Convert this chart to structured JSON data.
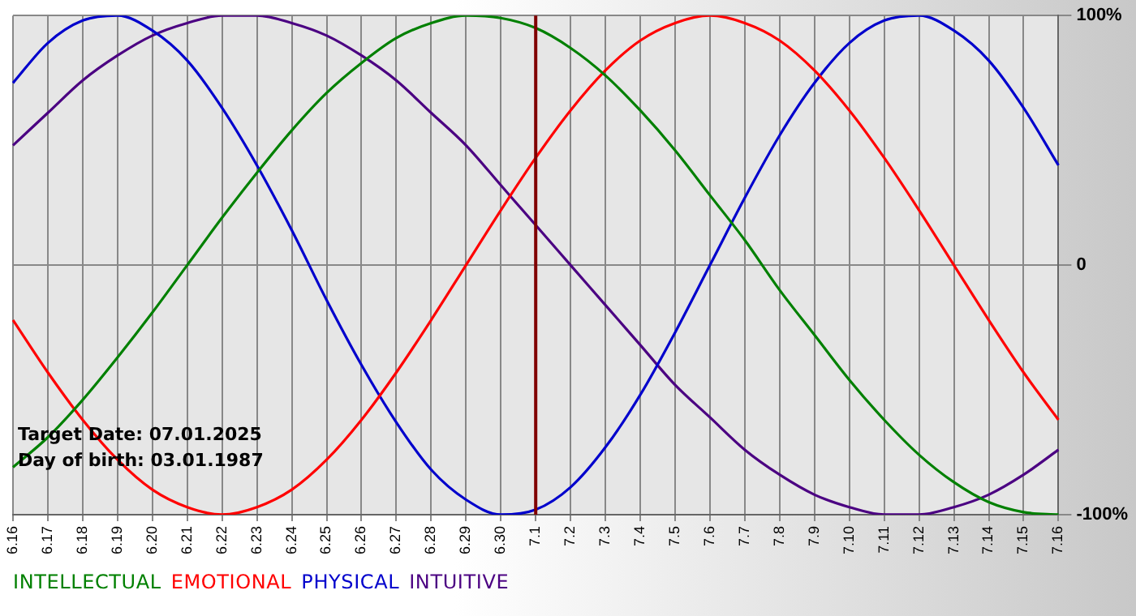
{
  "chart_data": {
    "type": "line",
    "categories": [
      "6.16",
      "6.17",
      "6.18",
      "6.19",
      "6.20",
      "6.21",
      "6.22",
      "6.23",
      "6.24",
      "6.25",
      "6.26",
      "6.27",
      "6.28",
      "6.29",
      "6.30",
      "7.1",
      "7.2",
      "7.3",
      "7.4",
      "7.5",
      "7.6",
      "7.7",
      "7.8",
      "7.9",
      "7.10",
      "7.11",
      "7.12",
      "7.13",
      "7.14",
      "7.15",
      "7.16"
    ],
    "series": [
      {
        "name": "INTELLECTUAL",
        "color": "#008000",
        "values": [
          -81,
          -69,
          -54,
          -37,
          -19,
          0,
          19,
          37,
          54,
          69,
          81,
          91,
          97,
          100,
          99,
          95,
          87,
          76,
          62,
          46,
          28,
          10,
          -10,
          -28,
          -46,
          -62,
          -76,
          -87,
          -95,
          -99,
          -100
        ]
      },
      {
        "name": "EMOTIONAL",
        "color": "#ff0000",
        "values": [
          -22,
          -43,
          -62,
          -78,
          -90,
          -97,
          -100,
          -97,
          -90,
          -78,
          -62,
          -43,
          -22,
          0,
          22,
          43,
          62,
          78,
          90,
          97,
          100,
          97,
          90,
          78,
          62,
          43,
          22,
          0,
          -22,
          -43,
          -62
        ]
      },
      {
        "name": "PHYSICAL",
        "color": "#0000cc",
        "values": [
          73,
          89,
          98,
          100,
          94,
          82,
          63,
          40,
          14,
          -14,
          -40,
          -63,
          -82,
          -94,
          -100,
          -98,
          -89,
          -73,
          -52,
          -27,
          0,
          27,
          52,
          73,
          89,
          98,
          100,
          94,
          82,
          63,
          40
        ]
      },
      {
        "name": "INTUITIVE",
        "color": "#4b0082",
        "values": [
          48,
          61,
          74,
          84,
          92,
          97,
          100,
          100,
          97,
          92,
          84,
          74,
          61,
          48,
          32,
          16,
          0,
          -16,
          -32,
          -48,
          -61,
          -74,
          -84,
          -92,
          -97,
          -100,
          -100,
          -97,
          -92,
          -84,
          -74
        ]
      }
    ],
    "ylim": [
      -100,
      100
    ],
    "yticks": [
      {
        "value": 100,
        "label": "100%"
      },
      0,
      {
        "value": -100,
        "label": "-100%"
      }
    ],
    "ref_lines": [
      {
        "axis": "x",
        "value": "7.1",
        "color": "#800000"
      }
    ],
    "annotations": [
      "Target Date: 07.01.2025",
      "Day of birth: 03.01.1987"
    ],
    "grid": true,
    "legend": "bottom",
    "marker": "none",
    "line_style": "solid"
  }
}
